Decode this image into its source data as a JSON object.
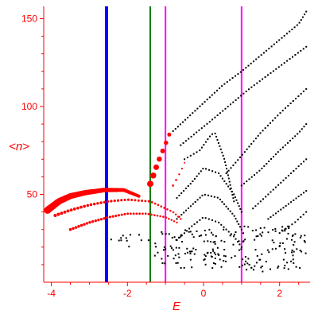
{
  "chart_data": {
    "type": "scatter",
    "xlabel": "E",
    "ylabel": "<n>",
    "xlim": [
      -4.2,
      2.8
    ],
    "ylim": [
      0,
      157
    ],
    "x_ticks": [
      -4,
      -2,
      0,
      2
    ],
    "y_ticks": [
      50,
      100,
      150
    ],
    "axis_color": "#ff0000",
    "marker_colors": {
      "black": "#000000",
      "red": "#ff0000"
    },
    "vertical_lines": [
      {
        "x": -2.55,
        "color": "#0000ff",
        "width": 4
      },
      {
        "x": -1.4,
        "color": "#008000",
        "width": 2
      },
      {
        "x": -1.0,
        "color": "#ff00ff",
        "width": 2
      },
      {
        "x": 1.0,
        "color": "#ff00ff",
        "width": 2
      }
    ],
    "black_curves": [
      {
        "points": [
          [
            -0.8,
            86
          ],
          [
            -0.4,
            94
          ],
          [
            0.0,
            102
          ],
          [
            0.5,
            112
          ],
          [
            1.0,
            120
          ],
          [
            1.5,
            129
          ],
          [
            2.0,
            138
          ],
          [
            2.5,
            147
          ],
          [
            2.7,
            154
          ]
        ],
        "count": 55
      },
      {
        "points": [
          [
            -0.6,
            78
          ],
          [
            -0.2,
            85
          ],
          [
            0.2,
            92
          ],
          [
            0.7,
            101
          ],
          [
            1.2,
            110
          ],
          [
            1.7,
            118
          ],
          [
            2.2,
            126
          ],
          [
            2.7,
            134
          ]
        ],
        "count": 48
      },
      {
        "points": [
          [
            -0.5,
            70
          ],
          [
            -0.1,
            75
          ],
          [
            0.2,
            84
          ],
          [
            0.3,
            85
          ],
          [
            0.55,
            70
          ],
          [
            0.8,
            46
          ]
        ],
        "count": 34
      },
      {
        "points": [
          [
            0.6,
            62
          ],
          [
            1.0,
            72
          ],
          [
            1.5,
            85
          ],
          [
            2.0,
            96
          ],
          [
            2.5,
            106
          ],
          [
            2.7,
            110
          ]
        ],
        "count": 34
      },
      {
        "points": [
          [
            1.0,
            55
          ],
          [
            1.5,
            64
          ],
          [
            2.0,
            75
          ],
          [
            2.5,
            85
          ],
          [
            2.7,
            90
          ]
        ],
        "count": 28
      },
      {
        "points": [
          [
            1.3,
            42
          ],
          [
            1.8,
            52
          ],
          [
            2.2,
            60
          ],
          [
            2.7,
            70
          ]
        ],
        "count": 22
      },
      {
        "points": [
          [
            1.7,
            36
          ],
          [
            2.2,
            44
          ],
          [
            2.7,
            52
          ]
        ],
        "count": 16
      },
      {
        "points": [
          [
            2.0,
            28
          ],
          [
            2.4,
            34
          ],
          [
            2.7,
            40
          ]
        ],
        "count": 10
      },
      {
        "points": [
          [
            -0.7,
            48
          ],
          [
            -0.3,
            57
          ],
          [
            0.0,
            65
          ],
          [
            0.4,
            62
          ],
          [
            0.8,
            50
          ],
          [
            1.0,
            40
          ]
        ],
        "count": 32
      },
      {
        "points": [
          [
            -0.7,
            36
          ],
          [
            -0.3,
            44
          ],
          [
            0.0,
            50
          ],
          [
            0.4,
            48
          ],
          [
            0.8,
            38
          ],
          [
            1.0,
            30
          ]
        ],
        "count": 30
      },
      {
        "points": [
          [
            -0.7,
            24
          ],
          [
            -0.3,
            32
          ],
          [
            0.0,
            37
          ],
          [
            0.4,
            34
          ],
          [
            0.8,
            26
          ],
          [
            1.0,
            20
          ]
        ],
        "count": 26
      }
    ],
    "black_cloud": [
      {
        "x_range": [
          -1.3,
          1.0
        ],
        "y_range": [
          8,
          30
        ],
        "count": 110
      },
      {
        "x_range": [
          1.0,
          2.7
        ],
        "y_range": [
          6,
          32
        ],
        "count": 95
      },
      {
        "x_range": [
          -2.6,
          -1.4
        ],
        "y_range": [
          20,
          28
        ],
        "count": 12
      }
    ],
    "red_series": [
      {
        "points": [
          [
            -4.1,
            41
          ],
          [
            -3.8,
            46
          ],
          [
            -3.5,
            49
          ],
          [
            -3.1,
            51
          ],
          [
            -2.6,
            52.5
          ],
          [
            -2.1,
            52.5
          ],
          [
            -1.7,
            49
          ]
        ],
        "count": 60,
        "size_range": [
          2.0,
          4.5
        ]
      },
      {
        "points": [
          [
            -3.9,
            38
          ],
          [
            -3.5,
            41
          ],
          [
            -3.0,
            44
          ],
          [
            -2.5,
            46
          ],
          [
            -2.0,
            47
          ],
          [
            -1.4,
            46
          ],
          [
            -0.8,
            40
          ],
          [
            -0.6,
            36
          ]
        ],
        "count": 40,
        "size_range": [
          1.2,
          2.0
        ]
      },
      {
        "points": [
          [
            -3.5,
            30
          ],
          [
            -3.0,
            34
          ],
          [
            -2.5,
            37
          ],
          [
            -2.0,
            39
          ],
          [
            -1.5,
            39
          ],
          [
            -1.0,
            37
          ],
          [
            -0.7,
            34
          ]
        ],
        "count": 38,
        "size_range": [
          1.2,
          1.8
        ]
      },
      {
        "points": [
          [
            -1.4,
            56
          ],
          [
            -1.3,
            62
          ],
          [
            -1.2,
            68
          ],
          [
            -1.05,
            76
          ],
          [
            -0.9,
            84
          ]
        ],
        "count": 7,
        "size_range": [
          2.5,
          4.0
        ]
      },
      {
        "points": [
          [
            -0.8,
            55
          ],
          [
            -0.6,
            63
          ],
          [
            -0.5,
            68
          ]
        ],
        "count": 5,
        "size_range": [
          1.0,
          1.4
        ]
      }
    ]
  }
}
